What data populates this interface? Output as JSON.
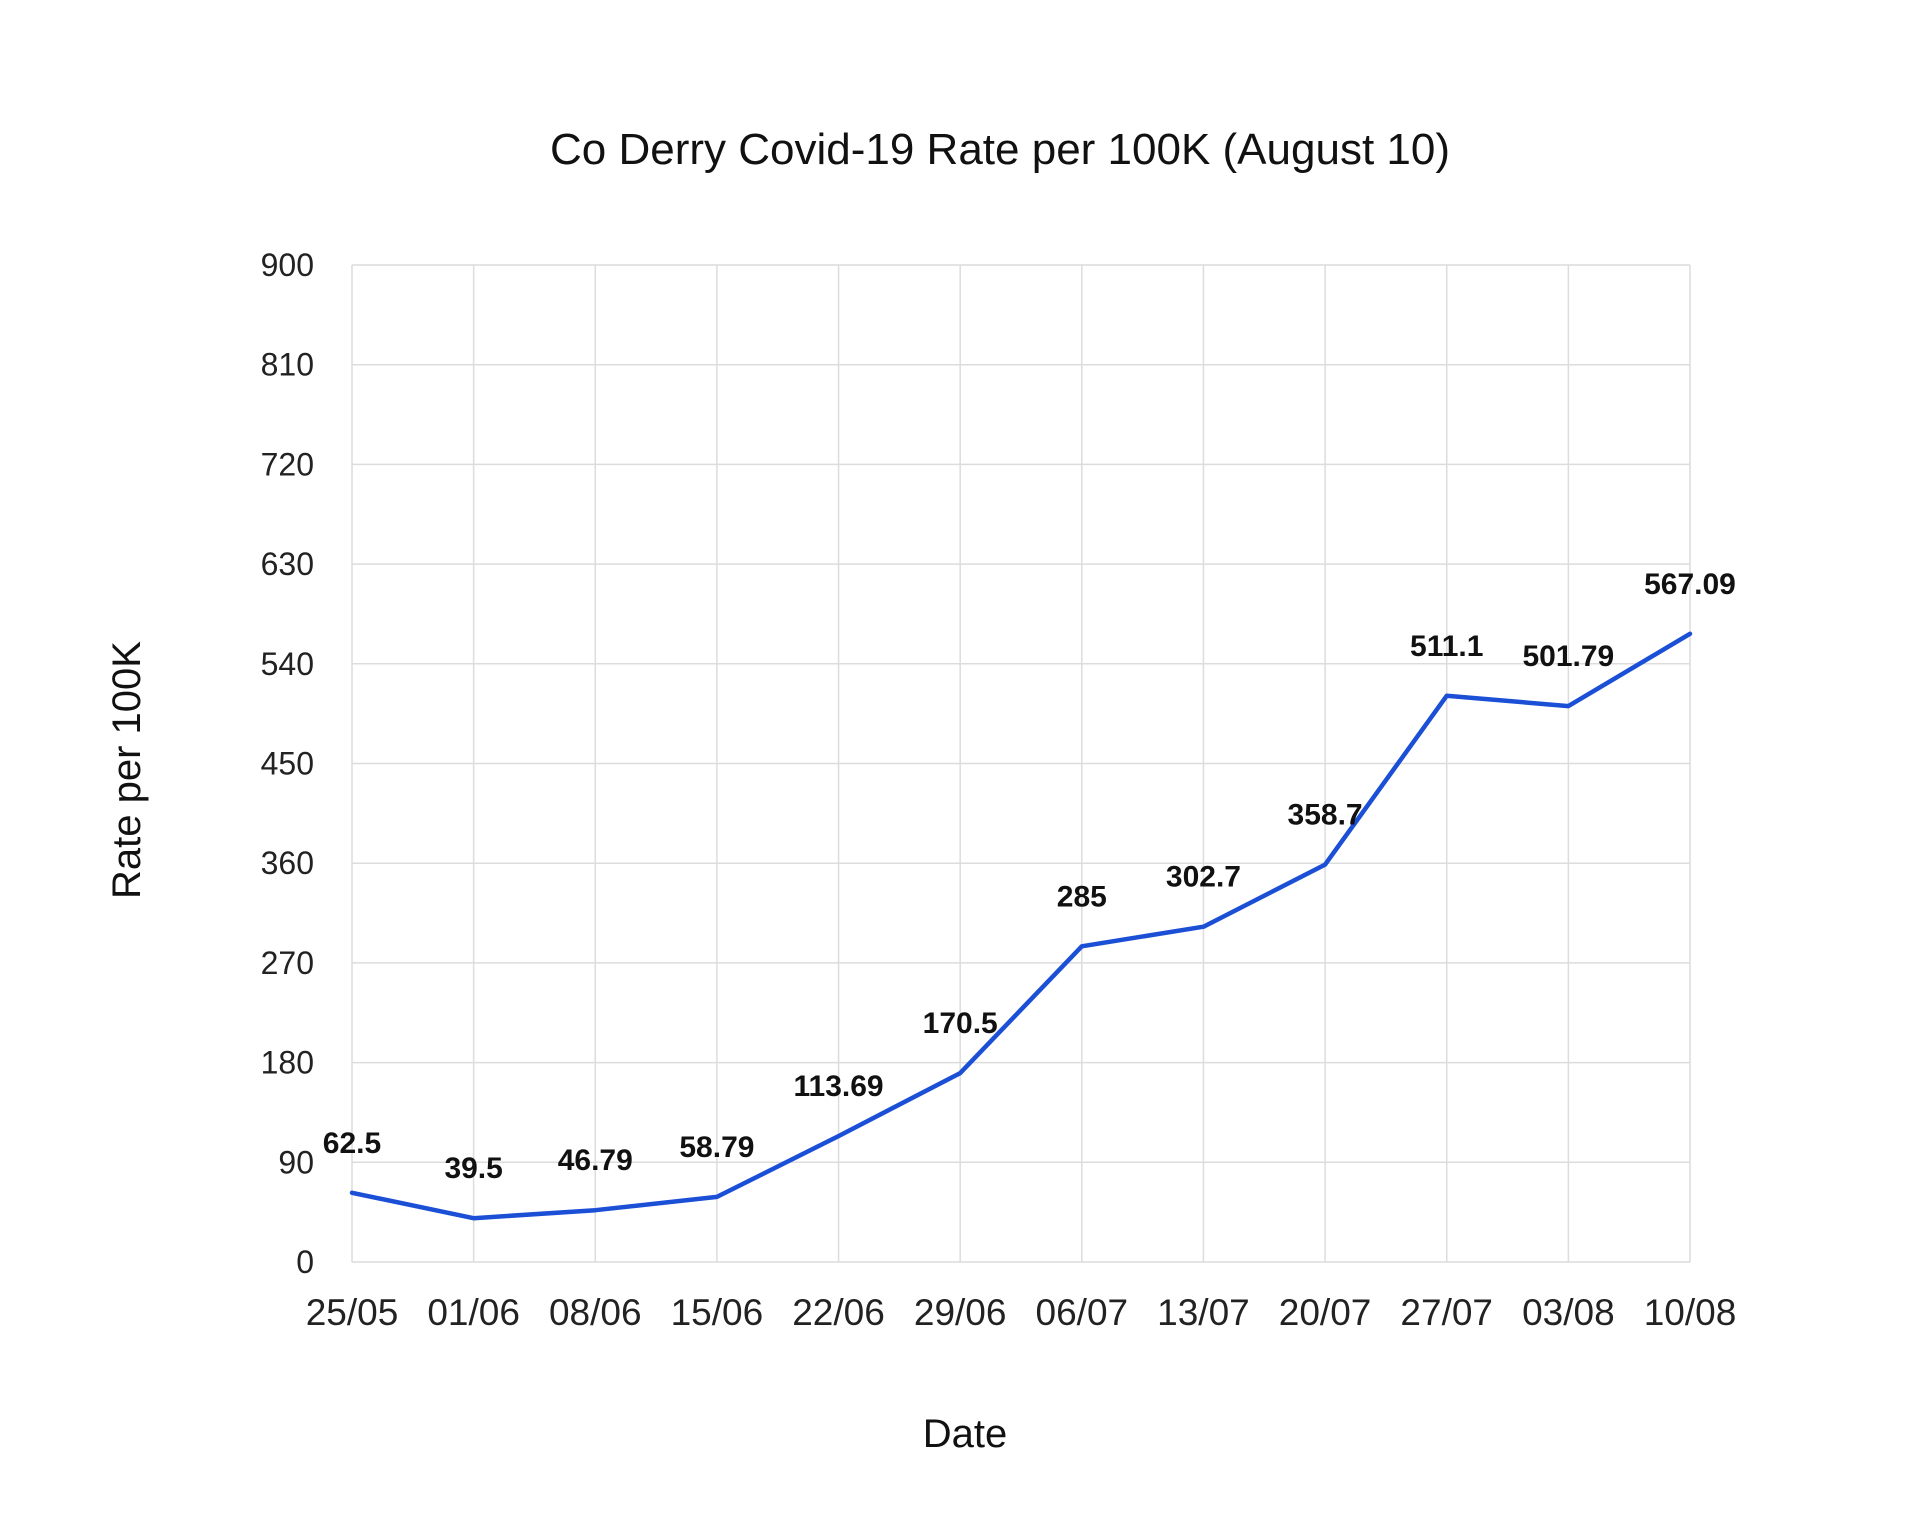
{
  "chart_data": {
    "type": "line",
    "title": "Co Derry Covid-19 Rate per 100K (August 10)",
    "xlabel": "Date",
    "ylabel": "Rate per 100K",
    "categories": [
      "25/05",
      "01/06",
      "08/06",
      "15/06",
      "22/06",
      "29/06",
      "06/07",
      "13/07",
      "20/07",
      "27/07",
      "03/08",
      "10/08"
    ],
    "values": [
      62.5,
      39.5,
      46.79,
      58.79,
      113.69,
      170.5,
      285,
      302.7,
      358.7,
      511.1,
      501.79,
      567.09
    ],
    "data_labels": [
      "62.5",
      "39.5",
      "46.79",
      "58.79",
      "113.69",
      "170.5",
      "285",
      "302.7",
      "358.7",
      "511.1",
      "501.79",
      "567.09"
    ],
    "ylim": [
      0,
      900
    ],
    "yticks": [
      "0",
      "90",
      "180",
      "270",
      "360",
      "450",
      "540",
      "630",
      "720",
      "810",
      "900"
    ],
    "grid": true,
    "legend": "none",
    "line_color": "#1a4fd6"
  }
}
